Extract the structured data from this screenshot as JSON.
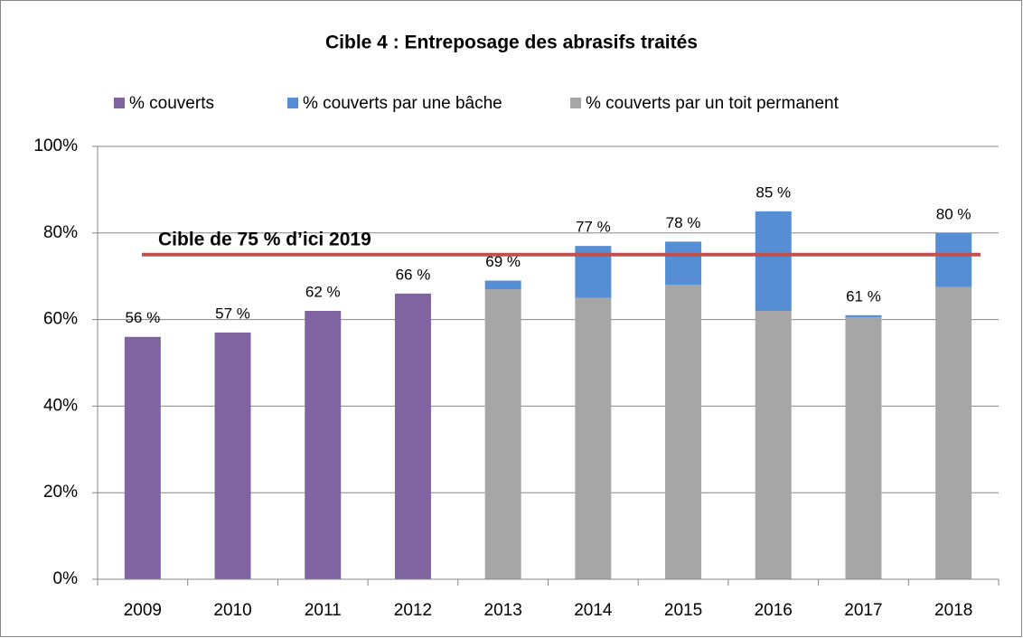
{
  "chart_data": {
    "type": "stacked_bar",
    "title": "Cible 4 : Entreposage des abrasifs traités",
    "categories": [
      "2009",
      "2010",
      "2011",
      "2012",
      "2013",
      "2014",
      "2015",
      "2016",
      "2017",
      "2018"
    ],
    "series": [
      {
        "name": "% couverts",
        "color": "#8064a2",
        "values": [
          56,
          57,
          62,
          66,
          null,
          null,
          null,
          null,
          null,
          null
        ]
      },
      {
        "name": "% couverts par une bâche",
        "color": "#558ed5",
        "values": [
          null,
          null,
          null,
          null,
          2,
          12,
          10,
          23,
          0.5,
          12.5
        ]
      },
      {
        "name": "% couverts par un toit permanent",
        "color": "#a6a6a6",
        "values": [
          null,
          null,
          null,
          null,
          67,
          65,
          68,
          62,
          60.5,
          67.5
        ]
      }
    ],
    "totals": [
      56,
      57,
      62,
      66,
      69,
      77,
      78,
      85,
      61,
      80
    ],
    "total_labels": [
      "56 %",
      "57 %",
      "62 %",
      "66 %",
      "69 %",
      "77 %",
      "78 %",
      "85 %",
      "61 %",
      "80 %"
    ],
    "target": {
      "value": 75,
      "label": "Cible de 75 % d’ici 2019",
      "color": "#c0504d"
    },
    "ylim": [
      0,
      100
    ],
    "yticks": [
      {
        "value": 0,
        "label": "0%"
      },
      {
        "value": 20,
        "label": "20%"
      },
      {
        "value": 40,
        "label": "40%"
      },
      {
        "value": 60,
        "label": "60%"
      },
      {
        "value": 80,
        "label": "80%"
      },
      {
        "value": 100,
        "label": "100%"
      }
    ],
    "grid": true,
    "legend": "top"
  }
}
